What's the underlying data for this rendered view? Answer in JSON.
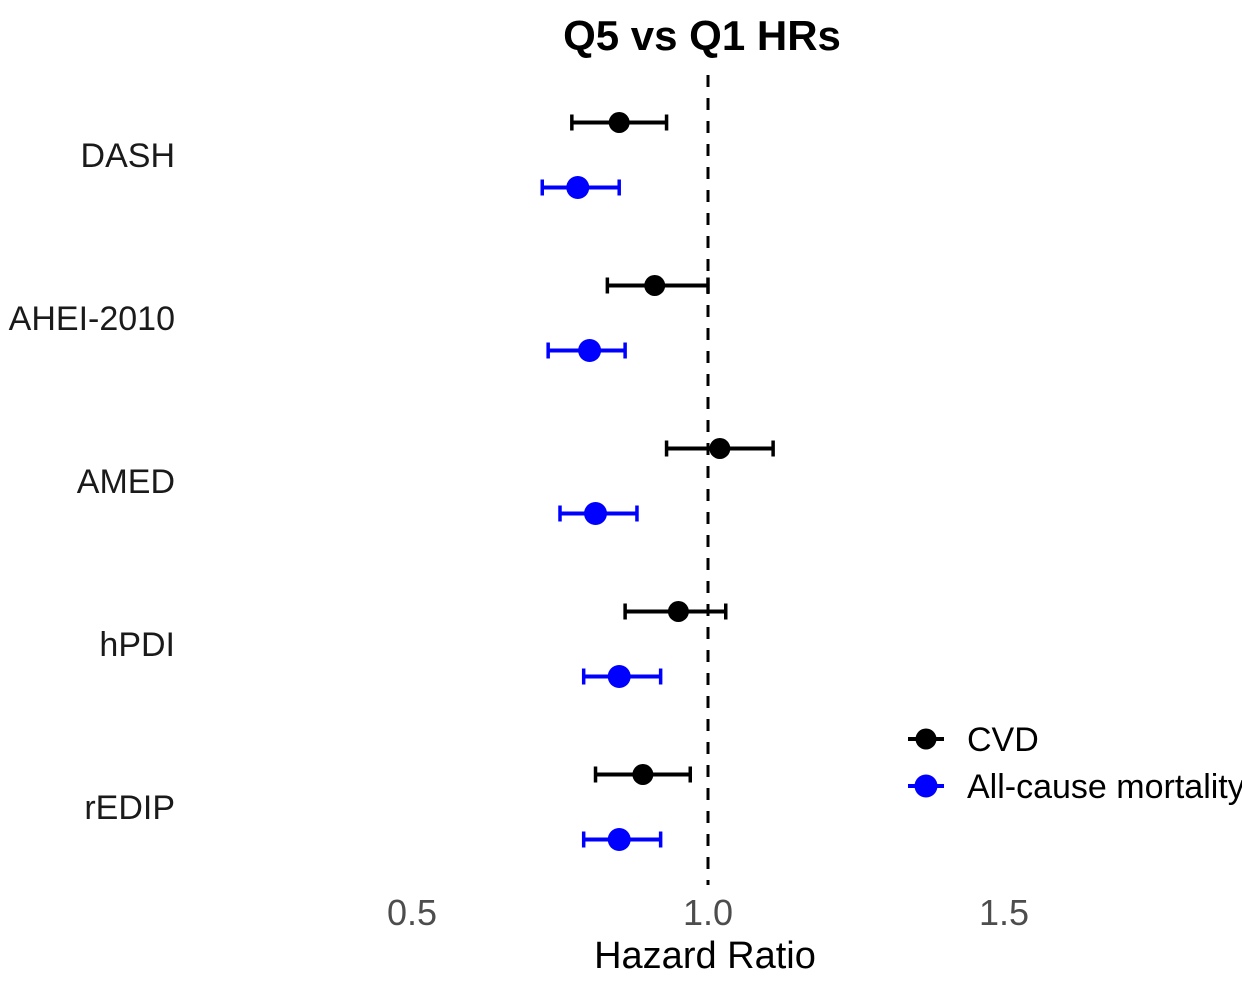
{
  "chart_data": {
    "type": "forest",
    "title": "Q5 vs Q1 HRs",
    "xlabel": "Hazard Ratio",
    "reference_line": 1.0,
    "x_ticks": [
      {
        "label": "0.5",
        "value": 0.5
      },
      {
        "label": "1.0",
        "value": 1.0
      },
      {
        "label": "1.5",
        "value": 1.5
      }
    ],
    "xlim": [
      0.15,
      1.9
    ],
    "grid": false,
    "legend_position": "right-lower",
    "categories": [
      "DASH",
      "AHEI-2010",
      "AMED",
      "hPDI",
      "rEDIP"
    ],
    "series": [
      {
        "name": "CVD",
        "color": "#000000",
        "values": [
          {
            "hr": 0.85,
            "lo": 0.77,
            "hi": 0.93
          },
          {
            "hr": 0.91,
            "lo": 0.83,
            "hi": 1.0
          },
          {
            "hr": 1.02,
            "lo": 0.93,
            "hi": 1.11
          },
          {
            "hr": 0.95,
            "lo": 0.86,
            "hi": 1.03
          },
          {
            "hr": 0.89,
            "lo": 0.81,
            "hi": 0.97
          }
        ]
      },
      {
        "name": "All-cause mortality",
        "color": "#0000FF",
        "values": [
          {
            "hr": 0.78,
            "lo": 0.72,
            "hi": 0.85
          },
          {
            "hr": 0.8,
            "lo": 0.73,
            "hi": 0.86
          },
          {
            "hr": 0.81,
            "lo": 0.75,
            "hi": 0.88
          },
          {
            "hr": 0.85,
            "lo": 0.79,
            "hi": 0.92
          },
          {
            "hr": 0.85,
            "lo": 0.79,
            "hi": 0.92
          }
        ]
      }
    ],
    "colors": {
      "cvd": "#000000",
      "all_cause_mortality": "#0000FF",
      "axis_tick_label": "#4D4D4D",
      "reference_line": "#000000"
    }
  }
}
